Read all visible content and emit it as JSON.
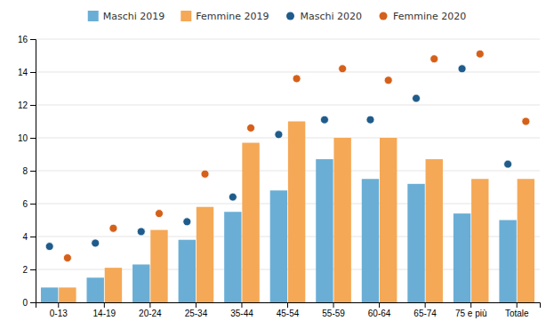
{
  "chart_data": {
    "type": "bar",
    "categories": [
      "0-13",
      "14-19",
      "20-24",
      "25-34",
      "35-44",
      "45-54",
      "55-59",
      "60-64",
      "65-74",
      "75 e più",
      "Totale"
    ],
    "series": [
      {
        "name": "Maschi 2019",
        "type": "bar",
        "color": "#6AAED6",
        "values": [
          0.9,
          1.5,
          2.3,
          3.8,
          5.5,
          6.8,
          8.7,
          7.5,
          7.2,
          5.4,
          5.0
        ]
      },
      {
        "name": "Femmine 2019",
        "type": "bar",
        "color": "#F5A855",
        "values": [
          0.9,
          2.1,
          4.4,
          5.8,
          9.7,
          11.0,
          10.0,
          10.0,
          8.7,
          7.5,
          7.5
        ]
      },
      {
        "name": "Maschi 2020",
        "type": "scatter",
        "marker": "circle",
        "color": "#1F5C8B",
        "values": [
          3.4,
          3.6,
          4.3,
          4.9,
          6.4,
          10.2,
          11.1,
          11.1,
          12.4,
          14.2,
          8.4
        ]
      },
      {
        "name": "Femmine 2020",
        "type": "scatter",
        "marker": "circle",
        "color": "#D4601A",
        "values": [
          2.7,
          4.5,
          5.4,
          7.8,
          10.6,
          13.6,
          14.2,
          13.5,
          14.8,
          15.1,
          11.0
        ]
      }
    ],
    "ylim": [
      0,
      16
    ],
    "yticks": [
      0,
      2,
      4,
      6,
      8,
      10,
      12,
      14,
      16
    ],
    "grid": true,
    "legend": "top"
  }
}
